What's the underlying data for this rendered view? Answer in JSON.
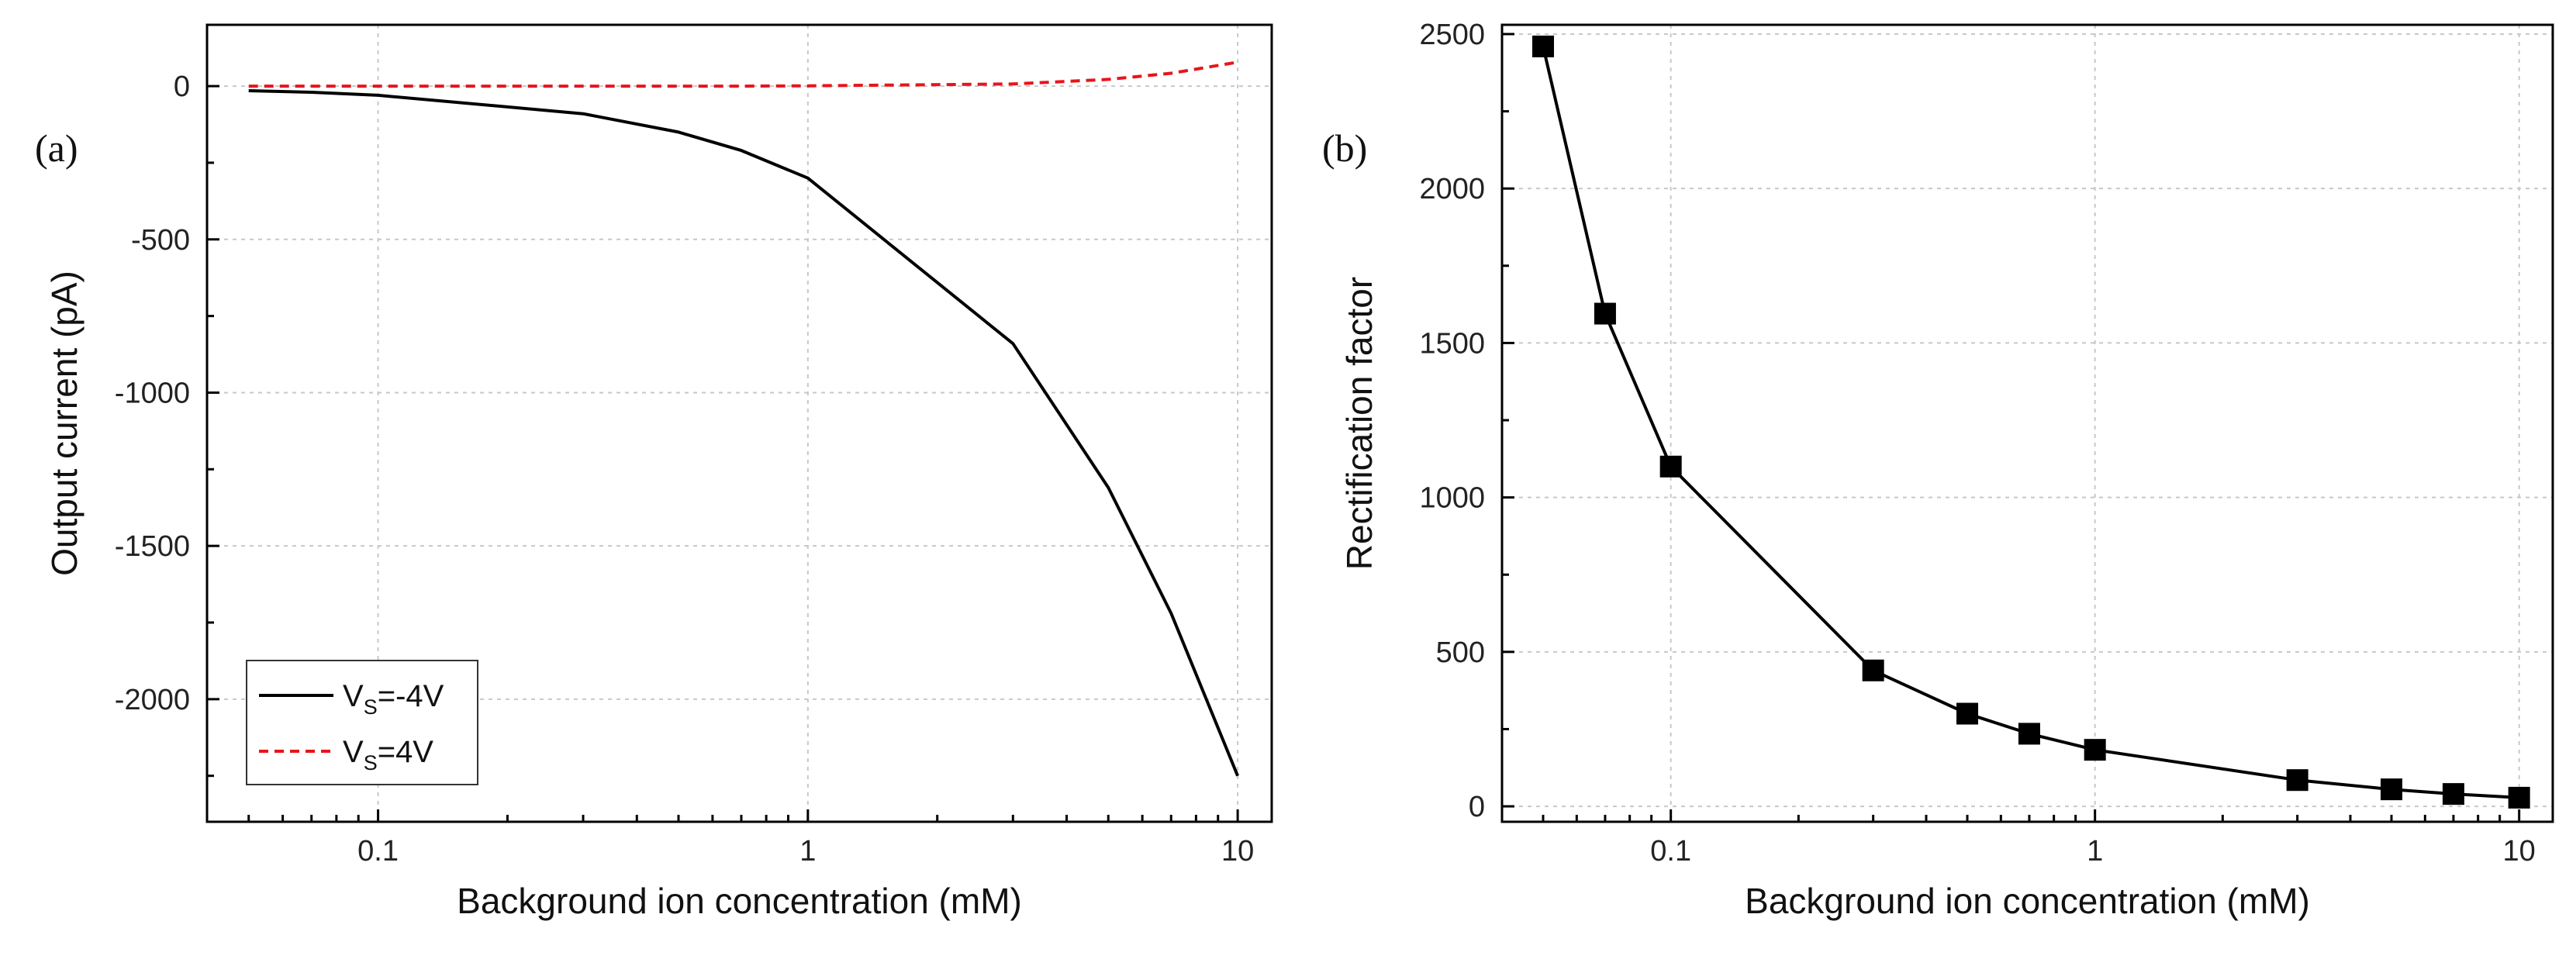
{
  "chart_data": [
    {
      "panel_label": "(a)",
      "type": "line",
      "xlabel": "Background ion concentration (mM)",
      "ylabel": "Output current (pA)",
      "x_scale": "log",
      "xlim": [
        0.04,
        12
      ],
      "ylim": [
        -2400,
        200
      ],
      "grid": true,
      "x_ticks": [
        0.1,
        1,
        10
      ],
      "x_tick_labels": [
        "0.1",
        "1",
        "10"
      ],
      "y_ticks": [
        0,
        -500,
        -1000,
        -1500,
        -2000
      ],
      "y_tick_labels": [
        "0",
        "-500",
        "-1000",
        "-1500",
        "-2000"
      ],
      "legend_position": "bottom-left",
      "series": [
        {
          "name": "Vs=-4V",
          "legend_main": "V",
          "legend_sub": "S",
          "legend_tail": "=-4V",
          "color": "#000000",
          "style": "solid",
          "x": [
            0.05,
            0.07,
            0.1,
            0.3,
            0.5,
            0.7,
            1,
            3,
            5,
            7,
            10
          ],
          "y": [
            -15,
            -20,
            -30,
            -90,
            -150,
            -210,
            -300,
            -840,
            -1310,
            -1720,
            -2250
          ]
        },
        {
          "name": "Vs=4V",
          "legend_main": "V",
          "legend_sub": "S",
          "legend_tail": "=4V",
          "color": "#e8141b",
          "style": "dashed",
          "x": [
            0.05,
            0.07,
            0.1,
            0.3,
            0.5,
            0.7,
            1,
            3,
            5,
            7,
            10
          ],
          "y": [
            0,
            0,
            0,
            0,
            0,
            0,
            1,
            7,
            22,
            42,
            78
          ]
        }
      ]
    },
    {
      "panel_label": "(b)",
      "type": "line",
      "xlabel": "Background ion concentration (mM)",
      "ylabel": "Rectification factor",
      "x_scale": "log",
      "xlim": [
        0.04,
        12
      ],
      "ylim": [
        -50,
        2530
      ],
      "grid": true,
      "x_ticks": [
        0.1,
        1,
        10
      ],
      "x_tick_labels": [
        "0.1",
        "1",
        "10"
      ],
      "y_ticks": [
        0,
        500,
        1000,
        1500,
        2000,
        2500
      ],
      "y_tick_labels": [
        "0",
        "500",
        "1000",
        "1500",
        "2000",
        "2500"
      ],
      "series": [
        {
          "name": "Rectification factor",
          "color": "#000000",
          "style": "solid",
          "marker": "square",
          "x": [
            0.05,
            0.07,
            0.1,
            0.3,
            0.5,
            0.7,
            1,
            3,
            5,
            7,
            10
          ],
          "y": [
            2460,
            1595,
            1100,
            440,
            300,
            235,
            183,
            85,
            55,
            40,
            28
          ]
        }
      ]
    }
  ]
}
